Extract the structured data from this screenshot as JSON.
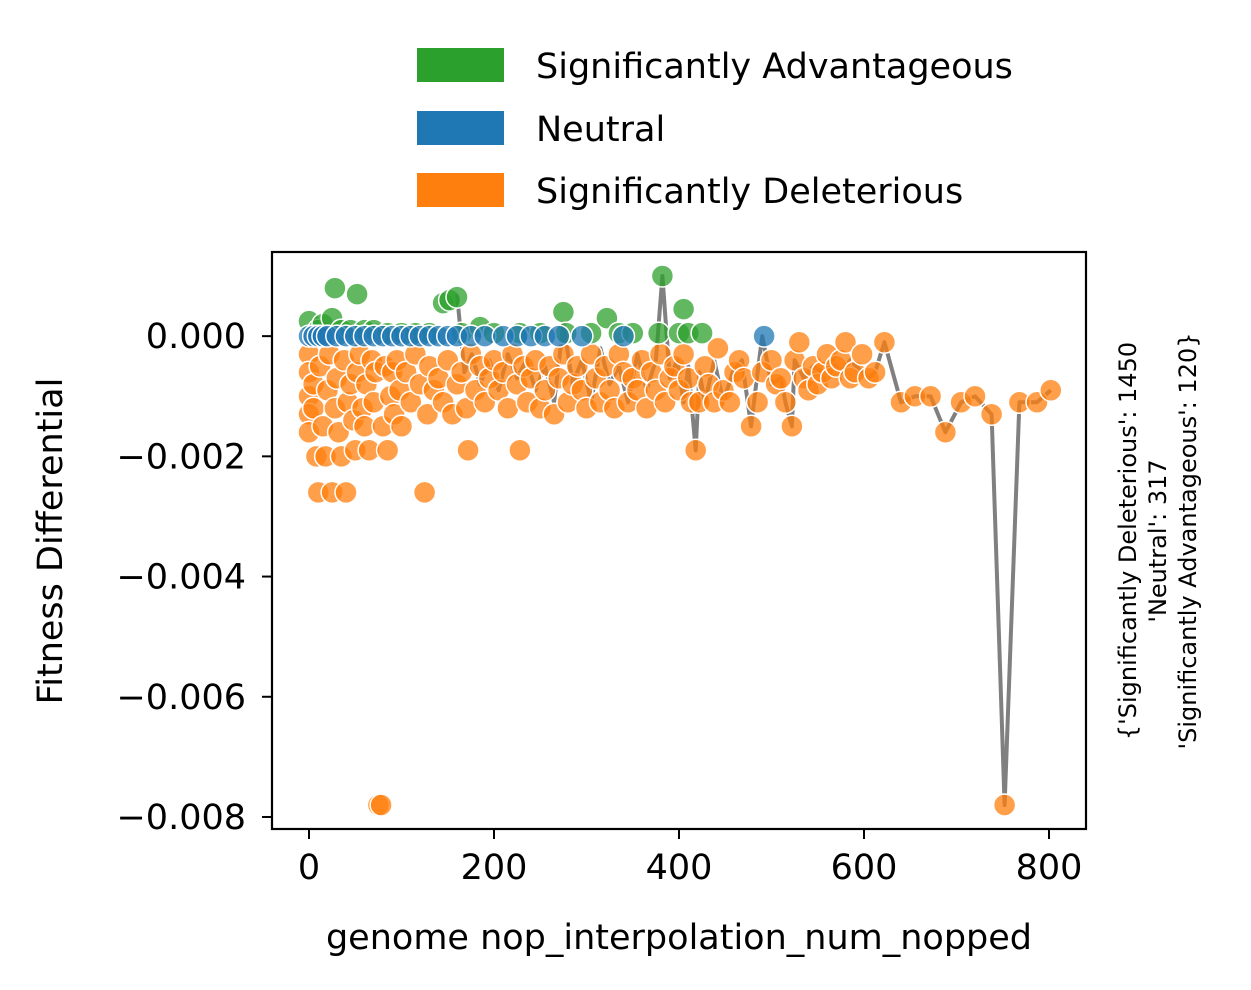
{
  "chart_data": {
    "type": "scatter",
    "title": "",
    "xlabel": "genome nop_interpolation_num_nopped",
    "ylabel": "Fitness Differential",
    "xlim": [
      -40,
      840
    ],
    "ylim": [
      -0.0082,
      0.0014
    ],
    "xticks": [
      0,
      200,
      400,
      600,
      800
    ],
    "xtick_labels": [
      "0",
      "200",
      "400",
      "600",
      "800"
    ],
    "yticks": [
      0.0,
      -0.002,
      -0.004,
      -0.006,
      -0.008
    ],
    "ytick_labels": [
      "0.000",
      "−0.002",
      "−0.004",
      "−0.006",
      "−0.008"
    ],
    "grid": false,
    "legend_position": "top",
    "side_note_lines": [
      "{'Significantly Deleterious': 1450",
      "'Neutral': 317",
      "'Significantly Advantageous': 120}"
    ],
    "series": [
      {
        "name": "Significantly Advantageous",
        "color": "#2ca02c",
        "points": [
          [
            0,
            0.00025
          ],
          [
            10,
            0.0001
          ],
          [
            15,
            0.0002
          ],
          [
            25,
            0.0003
          ],
          [
            28,
            0.0008
          ],
          [
            35,
            0.0001
          ],
          [
            45,
            0.0001
          ],
          [
            52,
            0.0007
          ],
          [
            60,
            0.0001
          ],
          [
            70,
            0.0001
          ],
          [
            85,
            5e-05
          ],
          [
            100,
            5e-05
          ],
          [
            115,
            5e-05
          ],
          [
            130,
            5e-05
          ],
          [
            145,
            0.00055
          ],
          [
            152,
            0.0006
          ],
          [
            160,
            0.00065
          ],
          [
            165,
            5e-05
          ],
          [
            185,
            0.00015
          ],
          [
            200,
            5e-05
          ],
          [
            228,
            5e-05
          ],
          [
            250,
            5e-05
          ],
          [
            275,
            0.0004
          ],
          [
            278,
            5e-05
          ],
          [
            305,
            5e-05
          ],
          [
            322,
            0.0003
          ],
          [
            335,
            5e-05
          ],
          [
            350,
            5e-05
          ],
          [
            378,
            5e-05
          ],
          [
            382,
            0.001
          ],
          [
            400,
            5e-05
          ],
          [
            405,
            0.00045
          ],
          [
            410,
            5e-05
          ],
          [
            425,
            5e-05
          ]
        ]
      },
      {
        "name": "Neutral",
        "color": "#1f77b4",
        "points": [
          [
            0,
            0.0
          ],
          [
            5,
            0.0
          ],
          [
            10,
            0.0
          ],
          [
            15,
            0.0
          ],
          [
            20,
            0.0
          ],
          [
            30,
            0.0
          ],
          [
            40,
            0.0
          ],
          [
            50,
            0.0
          ],
          [
            60,
            0.0
          ],
          [
            70,
            0.0
          ],
          [
            80,
            0.0
          ],
          [
            90,
            0.0
          ],
          [
            100,
            0.0
          ],
          [
            110,
            0.0
          ],
          [
            120,
            0.0
          ],
          [
            130,
            0.0
          ],
          [
            140,
            0.0
          ],
          [
            150,
            0.0
          ],
          [
            160,
            0.0
          ],
          [
            175,
            0.0
          ],
          [
            190,
            0.0
          ],
          [
            210,
            0.0
          ],
          [
            225,
            0.0
          ],
          [
            240,
            0.0
          ],
          [
            255,
            0.0
          ],
          [
            270,
            0.0
          ],
          [
            295,
            0.0
          ],
          [
            340,
            0.0
          ],
          [
            492,
            0.0
          ]
        ]
      },
      {
        "name": "Significantly Deleterious",
        "color": "#ff7f0e",
        "points": [
          [
            0,
            -0.0003
          ],
          [
            0,
            -0.0006
          ],
          [
            0,
            -0.001
          ],
          [
            0,
            -0.0013
          ],
          [
            0,
            -0.0016
          ],
          [
            5,
            -0.0008
          ],
          [
            5,
            -0.0012
          ],
          [
            8,
            -0.002
          ],
          [
            10,
            -0.0026
          ],
          [
            12,
            -0.0005
          ],
          [
            15,
            -0.0015
          ],
          [
            18,
            -0.002
          ],
          [
            20,
            -0.0009
          ],
          [
            22,
            -0.0003
          ],
          [
            25,
            -0.0026
          ],
          [
            28,
            -0.0012
          ],
          [
            30,
            -0.0007
          ],
          [
            32,
            -0.0016
          ],
          [
            35,
            -0.002
          ],
          [
            38,
            -0.0004
          ],
          [
            40,
            -0.0026
          ],
          [
            42,
            -0.0011
          ],
          [
            45,
            -0.0008
          ],
          [
            48,
            -0.0014
          ],
          [
            50,
            -0.0019
          ],
          [
            52,
            -0.0006
          ],
          [
            55,
            -0.0003
          ],
          [
            58,
            -0.0012
          ],
          [
            60,
            -0.0015
          ],
          [
            62,
            -0.0008
          ],
          [
            65,
            -0.0019
          ],
          [
            68,
            -0.0004
          ],
          [
            70,
            -0.0011
          ],
          [
            72,
            -0.0006
          ],
          [
            75,
            -0.0078
          ],
          [
            78,
            -0.0078
          ],
          [
            80,
            -0.0015
          ],
          [
            82,
            -0.0005
          ],
          [
            85,
            -0.0019
          ],
          [
            88,
            -0.001
          ],
          [
            90,
            -0.0006
          ],
          [
            92,
            -0.0013
          ],
          [
            95,
            -0.0004
          ],
          [
            98,
            -0.0009
          ],
          [
            100,
            -0.0015
          ],
          [
            105,
            -0.0006
          ],
          [
            110,
            -0.0011
          ],
          [
            115,
            -0.0003
          ],
          [
            120,
            -0.0008
          ],
          [
            125,
            -0.0026
          ],
          [
            128,
            -0.0013
          ],
          [
            130,
            -0.0005
          ],
          [
            135,
            -0.0009
          ],
          [
            140,
            -0.0007
          ],
          [
            145,
            -0.0011
          ],
          [
            150,
            -0.0004
          ],
          [
            155,
            -0.0013
          ],
          [
            160,
            -0.0008
          ],
          [
            165,
            -0.0006
          ],
          [
            170,
            -0.0012
          ],
          [
            172,
            -0.0019
          ],
          [
            175,
            -0.0003
          ],
          [
            180,
            -0.0009
          ],
          [
            185,
            -0.0005
          ],
          [
            190,
            -0.0011
          ],
          [
            195,
            -0.0007
          ],
          [
            200,
            -0.0004
          ],
          [
            205,
            -0.0009
          ],
          [
            210,
            -0.0006
          ],
          [
            215,
            -0.0012
          ],
          [
            220,
            -0.0003
          ],
          [
            225,
            -0.0008
          ],
          [
            228,
            -0.0019
          ],
          [
            232,
            -0.0005
          ],
          [
            236,
            -0.0011
          ],
          [
            240,
            -0.0007
          ],
          [
            245,
            -0.0004
          ],
          [
            250,
            -0.0012
          ],
          [
            255,
            -0.0009
          ],
          [
            260,
            -0.0005
          ],
          [
            265,
            -0.0013
          ],
          [
            270,
            -0.0007
          ],
          [
            275,
            -0.0003
          ],
          [
            280,
            -0.0011
          ],
          [
            285,
            -0.0008
          ],
          [
            290,
            -0.0005
          ],
          [
            295,
            -0.0009
          ],
          [
            300,
            -0.0012
          ],
          [
            305,
            -0.0003
          ],
          [
            310,
            -0.0007
          ],
          [
            315,
            -0.0011
          ],
          [
            320,
            -0.0005
          ],
          [
            325,
            -0.0009
          ],
          [
            330,
            -0.0012
          ],
          [
            335,
            -0.0003
          ],
          [
            340,
            -0.0006
          ],
          [
            345,
            -0.0011
          ],
          [
            350,
            -0.0007
          ],
          [
            355,
            -0.0009
          ],
          [
            360,
            -0.0004
          ],
          [
            365,
            -0.0012
          ],
          [
            370,
            -0.0006
          ],
          [
            375,
            -0.0009
          ],
          [
            380,
            -0.0003
          ],
          [
            385,
            -0.0011
          ],
          [
            390,
            -0.0007
          ],
          [
            395,
            -0.0005
          ],
          [
            400,
            -0.0009
          ],
          [
            405,
            -0.0003
          ],
          [
            410,
            -0.0007
          ],
          [
            413,
            -0.0011
          ],
          [
            418,
            -0.0019
          ],
          [
            422,
            -0.0011
          ],
          [
            428,
            -0.0005
          ],
          [
            432,
            -0.0008
          ],
          [
            438,
            -0.0011
          ],
          [
            442,
            -0.0002
          ],
          [
            448,
            -0.0009
          ],
          [
            455,
            -0.0011
          ],
          [
            460,
            -0.0006
          ],
          [
            465,
            -0.0004
          ],
          [
            470,
            -0.0007
          ],
          [
            478,
            -0.0015
          ],
          [
            485,
            -0.0011
          ],
          [
            490,
            -0.0006
          ],
          [
            500,
            -0.0004
          ],
          [
            505,
            -0.0008
          ],
          [
            510,
            -0.0007
          ],
          [
            515,
            -0.0011
          ],
          [
            522,
            -0.0015
          ],
          [
            525,
            -0.0004
          ],
          [
            530,
            -0.0001
          ],
          [
            535,
            -0.0007
          ],
          [
            540,
            -0.0009
          ],
          [
            545,
            -0.0005
          ],
          [
            550,
            -0.0008
          ],
          [
            555,
            -0.0006
          ],
          [
            560,
            -0.0003
          ],
          [
            565,
            -0.0007
          ],
          [
            570,
            -0.0005
          ],
          [
            575,
            -0.0004
          ],
          [
            580,
            -0.0001
          ],
          [
            585,
            -0.0007
          ],
          [
            590,
            -0.0006
          ],
          [
            598,
            -0.0003
          ],
          [
            605,
            -0.0007
          ],
          [
            612,
            -0.0006
          ],
          [
            622,
            -0.0001
          ],
          [
            640,
            -0.0011
          ],
          [
            655,
            -0.001
          ],
          [
            672,
            -0.001
          ],
          [
            688,
            -0.0016
          ],
          [
            705,
            -0.0011
          ],
          [
            720,
            -0.001
          ],
          [
            738,
            -0.0013
          ],
          [
            752,
            -0.0078
          ],
          [
            768,
            -0.0011
          ],
          [
            787,
            -0.0011
          ],
          [
            802,
            -0.0009
          ]
        ]
      }
    ],
    "trend_line": {
      "color": "#808080",
      "points": [
        [
          160,
          0.0007
        ],
        [
          168,
          -0.0006
        ],
        [
          176,
          -0.0003
        ],
        [
          185,
          -0.0008
        ],
        [
          195,
          -0.0004
        ],
        [
          205,
          -0.0009
        ],
        [
          215,
          -0.0003
        ],
        [
          225,
          -0.0007
        ],
        [
          235,
          -0.0004
        ],
        [
          245,
          -0.0009
        ],
        [
          255,
          -0.0005
        ],
        [
          265,
          -0.0011
        ],
        [
          275,
          0.0002
        ],
        [
          285,
          -0.0008
        ],
        [
          295,
          -0.0004
        ],
        [
          305,
          -0.0011
        ],
        [
          315,
          -0.0002
        ],
        [
          325,
          -0.0008
        ],
        [
          335,
          -0.0005
        ],
        [
          345,
          -0.0011
        ],
        [
          355,
          -0.0003
        ],
        [
          365,
          -0.0009
        ],
        [
          375,
          -0.0004
        ],
        [
          382,
          0.001
        ],
        [
          390,
          -0.0007
        ],
        [
          398,
          -0.0004
        ],
        [
          405,
          -0.0011
        ],
        [
          410,
          -0.0005
        ],
        [
          418,
          -0.0019
        ],
        [
          422,
          -0.0006
        ],
        [
          428,
          -0.0011
        ],
        [
          438,
          -0.0004
        ],
        [
          448,
          -0.0011
        ],
        [
          458,
          -0.0006
        ],
        [
          468,
          -0.0004
        ],
        [
          478,
          -0.0015
        ],
        [
          485,
          -0.0006
        ],
        [
          490,
          0.0
        ],
        [
          500,
          -0.0008
        ],
        [
          510,
          -0.0007
        ],
        [
          515,
          -0.0011
        ],
        [
          522,
          -0.0015
        ],
        [
          525,
          -0.0004
        ],
        [
          535,
          -0.0007
        ],
        [
          545,
          -0.0005
        ],
        [
          555,
          -0.0006
        ],
        [
          565,
          -0.0004
        ],
        [
          575,
          -0.0006
        ],
        [
          585,
          -0.0004
        ],
        [
          598,
          -0.0006
        ],
        [
          605,
          -0.0007
        ],
        [
          612,
          -0.0006
        ],
        [
          622,
          -0.0001
        ],
        [
          640,
          -0.0011
        ],
        [
          655,
          -0.001
        ],
        [
          672,
          -0.001
        ],
        [
          688,
          -0.0016
        ],
        [
          705,
          -0.0011
        ],
        [
          720,
          -0.001
        ],
        [
          738,
          -0.0013
        ],
        [
          752,
          -0.0078
        ],
        [
          768,
          -0.0011
        ],
        [
          787,
          -0.0011
        ],
        [
          802,
          -0.0009
        ]
      ]
    }
  }
}
